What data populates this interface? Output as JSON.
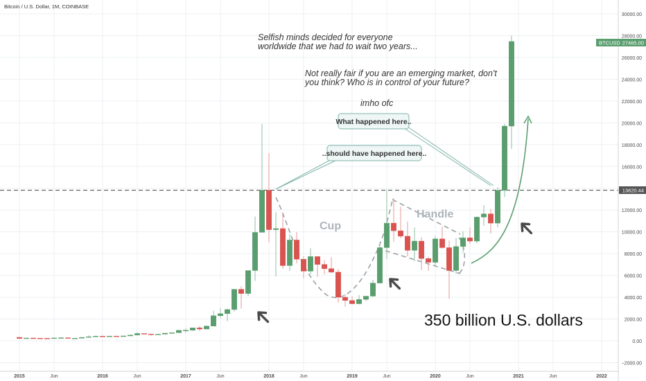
{
  "header": {
    "symbol_title": "Bitcoin / U.S. Dollar, 1M, COINBASE"
  },
  "colors": {
    "up": "#5a9e6f",
    "down": "#d9534f",
    "grid": "#eceff3",
    "axis_text": "#4a4a4a",
    "guide": "#8a8a8a",
    "arrow": "#4a4a4a",
    "callout_border": "#7fb3a8",
    "callout_bg": "#eef7f5",
    "price_tag": "#5a9e6f",
    "level_tag": "#555555"
  },
  "annotations": {
    "note1_line1": "Selfish minds decided for everyone",
    "note1_line2": "worldwide that we had to wait two years...",
    "note2_line1": "Not really fair if you are an emerging market, don't",
    "note2_line2": "you think? Who is in control of your future?",
    "note3": "imho ofc",
    "callout1": "What happened here..",
    "callout2": "..should have happened here..",
    "cup": "Cup",
    "handle": "Handle",
    "market_cap": "350 billion U.S. dollars"
  },
  "chart_data": {
    "type": "candlestick",
    "title": "Bitcoin / U.S. Dollar, 1M, COINBASE",
    "ylim": [
      -2500,
      30500
    ],
    "y_ticks": [
      -2000,
      0,
      2000,
      4000,
      6000,
      8000,
      10000,
      12000,
      14000,
      16000,
      18000,
      20000,
      22000,
      24000,
      26000,
      28000,
      30000
    ],
    "y_tick_labels": [
      "−2000.00",
      "0.00",
      "2000.00",
      "4000.00",
      "6000.00",
      "8000.00",
      "10000.00",
      "12000.00",
      "14000.00",
      "16000.00",
      "18000.00",
      "20000.00",
      "22000.00",
      "24000.00",
      "26000.00",
      "28000.00",
      "30000.00"
    ],
    "x_ticks": [
      "2015",
      "Jun",
      "2016",
      "Jun",
      "2017",
      "Jun",
      "2018",
      "Jun",
      "2019",
      "Jun",
      "2020",
      "Jun",
      "2021",
      "Jun",
      "2022"
    ],
    "last_price_label": "BTCUSD",
    "last_price": "27465.00",
    "level_value": 13820.44,
    "level_label": "13820.44",
    "candles": [
      {
        "t": "2015-01",
        "o": 320,
        "h": 320,
        "l": 170,
        "c": 217
      },
      {
        "t": "2015-02",
        "o": 217,
        "h": 270,
        "l": 210,
        "c": 255
      },
      {
        "t": "2015-03",
        "o": 255,
        "h": 300,
        "l": 240,
        "c": 245
      },
      {
        "t": "2015-04",
        "o": 245,
        "h": 260,
        "l": 215,
        "c": 237
      },
      {
        "t": "2015-05",
        "o": 237,
        "h": 250,
        "l": 225,
        "c": 230
      },
      {
        "t": "2015-06",
        "o": 230,
        "h": 270,
        "l": 215,
        "c": 262
      },
      {
        "t": "2015-07",
        "o": 262,
        "h": 320,
        "l": 255,
        "c": 284
      },
      {
        "t": "2015-08",
        "o": 284,
        "h": 285,
        "l": 200,
        "c": 230
      },
      {
        "t": "2015-09",
        "o": 230,
        "h": 245,
        "l": 225,
        "c": 236
      },
      {
        "t": "2015-10",
        "o": 236,
        "h": 330,
        "l": 235,
        "c": 314
      },
      {
        "t": "2015-11",
        "o": 314,
        "h": 495,
        "l": 310,
        "c": 377
      },
      {
        "t": "2015-12",
        "o": 377,
        "h": 470,
        "l": 345,
        "c": 430
      },
      {
        "t": "2016-01",
        "o": 430,
        "h": 460,
        "l": 350,
        "c": 370
      },
      {
        "t": "2016-02",
        "o": 370,
        "h": 440,
        "l": 365,
        "c": 437
      },
      {
        "t": "2016-03",
        "o": 437,
        "h": 440,
        "l": 400,
        "c": 416
      },
      {
        "t": "2016-04",
        "o": 416,
        "h": 465,
        "l": 410,
        "c": 448
      },
      {
        "t": "2016-05",
        "o": 448,
        "h": 550,
        "l": 435,
        "c": 531
      },
      {
        "t": "2016-06",
        "o": 531,
        "h": 780,
        "l": 530,
        "c": 673
      },
      {
        "t": "2016-07",
        "o": 673,
        "h": 700,
        "l": 600,
        "c": 624
      },
      {
        "t": "2016-08",
        "o": 624,
        "h": 625,
        "l": 470,
        "c": 575
      },
      {
        "t": "2016-09",
        "o": 575,
        "h": 610,
        "l": 570,
        "c": 609
      },
      {
        "t": "2016-10",
        "o": 609,
        "h": 720,
        "l": 605,
        "c": 700
      },
      {
        "t": "2016-11",
        "o": 700,
        "h": 760,
        "l": 680,
        "c": 742
      },
      {
        "t": "2016-12",
        "o": 742,
        "h": 980,
        "l": 740,
        "c": 963
      },
      {
        "t": "2017-01",
        "o": 963,
        "h": 1150,
        "l": 750,
        "c": 970
      },
      {
        "t": "2017-02",
        "o": 970,
        "h": 1200,
        "l": 920,
        "c": 1190
      },
      {
        "t": "2017-03",
        "o": 1190,
        "h": 1350,
        "l": 890,
        "c": 1080
      },
      {
        "t": "2017-04",
        "o": 1080,
        "h": 1420,
        "l": 1070,
        "c": 1350
      },
      {
        "t": "2017-05",
        "o": 1350,
        "h": 2760,
        "l": 1350,
        "c": 2300
      },
      {
        "t": "2017-06",
        "o": 2300,
        "h": 3000,
        "l": 2100,
        "c": 2490
      },
      {
        "t": "2017-07",
        "o": 2490,
        "h": 2950,
        "l": 1800,
        "c": 2870
      },
      {
        "t": "2017-08",
        "o": 2870,
        "h": 4750,
        "l": 2700,
        "c": 4730
      },
      {
        "t": "2017-09",
        "o": 4730,
        "h": 5000,
        "l": 2950,
        "c": 4340
      },
      {
        "t": "2017-10",
        "o": 4340,
        "h": 6450,
        "l": 4100,
        "c": 6450
      },
      {
        "t": "2017-11",
        "o": 6450,
        "h": 11400,
        "l": 5500,
        "c": 9950
      },
      {
        "t": "2017-12",
        "o": 9950,
        "h": 19900,
        "l": 10000,
        "c": 13820
      },
      {
        "t": "2018-01",
        "o": 13820,
        "h": 17200,
        "l": 9050,
        "c": 10200
      },
      {
        "t": "2018-02",
        "o": 10200,
        "h": 11800,
        "l": 5900,
        "c": 10300
      },
      {
        "t": "2018-03",
        "o": 10300,
        "h": 11700,
        "l": 6600,
        "c": 6900
      },
      {
        "t": "2018-04",
        "o": 6900,
        "h": 9800,
        "l": 6400,
        "c": 9250
      },
      {
        "t": "2018-05",
        "o": 9250,
        "h": 9990,
        "l": 7100,
        "c": 7490
      },
      {
        "t": "2018-06",
        "o": 7490,
        "h": 7760,
        "l": 5750,
        "c": 6390
      },
      {
        "t": "2018-07",
        "o": 6390,
        "h": 8500,
        "l": 6100,
        "c": 7730
      },
      {
        "t": "2018-08",
        "o": 7730,
        "h": 7770,
        "l": 5880,
        "c": 7010
      },
      {
        "t": "2018-09",
        "o": 7010,
        "h": 7400,
        "l": 6100,
        "c": 6620
      },
      {
        "t": "2018-10",
        "o": 6620,
        "h": 7680,
        "l": 6200,
        "c": 6300
      },
      {
        "t": "2018-11",
        "o": 6300,
        "h": 6580,
        "l": 3500,
        "c": 4000
      },
      {
        "t": "2018-12",
        "o": 4000,
        "h": 4300,
        "l": 3130,
        "c": 3700
      },
      {
        "t": "2019-01",
        "o": 3700,
        "h": 4100,
        "l": 3350,
        "c": 3400
      },
      {
        "t": "2019-02",
        "o": 3400,
        "h": 4200,
        "l": 3350,
        "c": 3800
      },
      {
        "t": "2019-03",
        "o": 3800,
        "h": 4100,
        "l": 3670,
        "c": 4100
      },
      {
        "t": "2019-04",
        "o": 4100,
        "h": 5600,
        "l": 4050,
        "c": 5300
      },
      {
        "t": "2019-05",
        "o": 5300,
        "h": 9000,
        "l": 5300,
        "c": 8550
      },
      {
        "t": "2019-06",
        "o": 8550,
        "h": 13880,
        "l": 7500,
        "c": 10800
      },
      {
        "t": "2019-07",
        "o": 10800,
        "h": 13100,
        "l": 9100,
        "c": 10100
      },
      {
        "t": "2019-08",
        "o": 10100,
        "h": 12300,
        "l": 9400,
        "c": 9600
      },
      {
        "t": "2019-09",
        "o": 9600,
        "h": 10950,
        "l": 7750,
        "c": 8300
      },
      {
        "t": "2019-10",
        "o": 8300,
        "h": 10400,
        "l": 7300,
        "c": 9150
      },
      {
        "t": "2019-11",
        "o": 9150,
        "h": 9500,
        "l": 6500,
        "c": 7550
      },
      {
        "t": "2019-12",
        "o": 7550,
        "h": 7700,
        "l": 6430,
        "c": 7200
      },
      {
        "t": "2020-01",
        "o": 7200,
        "h": 9600,
        "l": 6850,
        "c": 9350
      },
      {
        "t": "2020-02",
        "o": 9350,
        "h": 10500,
        "l": 8450,
        "c": 8550
      },
      {
        "t": "2020-03",
        "o": 8550,
        "h": 9200,
        "l": 3850,
        "c": 6450
      },
      {
        "t": "2020-04",
        "o": 6450,
        "h": 9450,
        "l": 6150,
        "c": 8650
      },
      {
        "t": "2020-05",
        "o": 8650,
        "h": 10050,
        "l": 8100,
        "c": 9450
      },
      {
        "t": "2020-06",
        "o": 9450,
        "h": 10400,
        "l": 8900,
        "c": 9150
      },
      {
        "t": "2020-07",
        "o": 9150,
        "h": 11400,
        "l": 8950,
        "c": 11350
      },
      {
        "t": "2020-08",
        "o": 11350,
        "h": 12450,
        "l": 10550,
        "c": 11650
      },
      {
        "t": "2020-09",
        "o": 11650,
        "h": 12100,
        "l": 9850,
        "c": 10800
      },
      {
        "t": "2020-10",
        "o": 10800,
        "h": 14100,
        "l": 10400,
        "c": 13800
      },
      {
        "t": "2020-11",
        "o": 13800,
        "h": 19900,
        "l": 13200,
        "c": 19700
      },
      {
        "t": "2020-12",
        "o": 19700,
        "h": 28000,
        "l": 17600,
        "c": 27465
      }
    ]
  }
}
